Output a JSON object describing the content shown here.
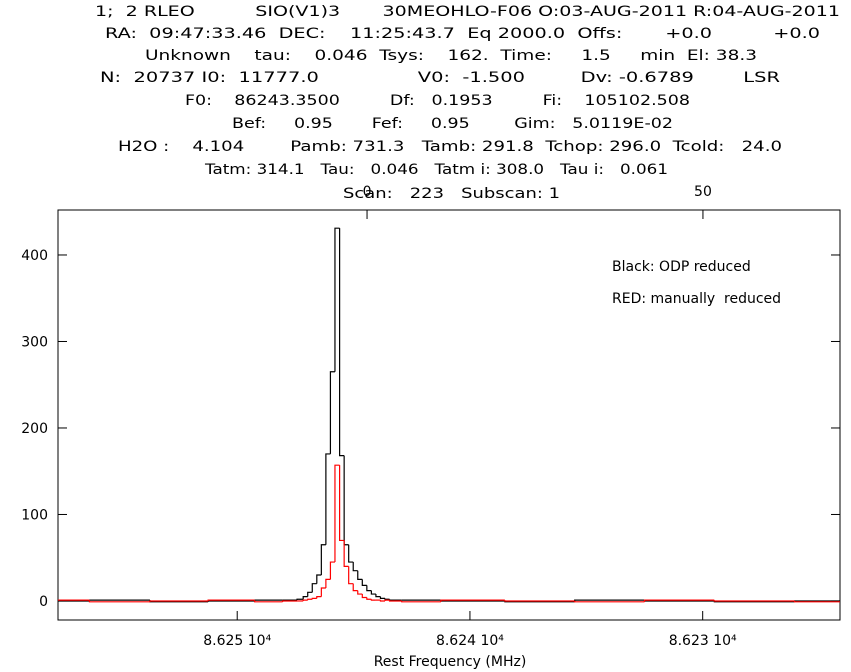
{
  "chart_data": {
    "type": "step",
    "header_lines": [
      "1;  2 RLEO          SIO(V1)3       30MEOHLO-F06 O:03-AUG-2011 R:04-AUG-2011",
      "RA:  09:47:33.46  DEC:    11:25:43.7  Eq 2000.0  Offs:       +0.0          +0.0",
      "Unknown    tau:    0.046  Tsys:    162.  Time:     1.5     min  El: 38.3",
      "N:  20737 I0:  11777.0                V0:  -1.500         Dv: -0.6789        LSR",
      "F0:    86243.3500         Df:   0.1953         Fi:    105102.508",
      "Bef:     0.95       Fef:     0.95        Gim:   5.0119E-02",
      "H2O :    4.104        Pamb: 731.3   Tamb: 291.8  Tchop: 296.0  Tcold:   24.0",
      "Tatm: 314.1   Tau:   0.046   Tatm i: 308.0   Tau i:   0.061",
      "Scan:   223   Subscan: 1"
    ],
    "x_label": "Rest Frequency (MHz)",
    "x": [
      86257.7,
      86255.0,
      86252.5,
      86250.0,
      86248.5,
      86247.6,
      86247.26,
      86247.07,
      86246.87,
      86246.68,
      86246.48,
      86246.29,
      86246.09,
      86245.9,
      86245.7,
      86245.5,
      86245.31,
      86245.11,
      86244.92,
      86244.72,
      86244.53,
      86244.33,
      86244.14,
      86243.94,
      86243.75,
      86243.55,
      86243.36,
      86242.5,
      86240.0,
      86237.0,
      86234.0,
      86231.0,
      86228.0,
      86224.1
    ],
    "series": [
      {
        "name": "Black: ODP reduced",
        "color": "#000000",
        "values": [
          0,
          1,
          -1,
          0,
          1,
          1,
          2,
          5,
          10,
          20,
          30,
          65,
          170,
          265,
          431,
          168,
          65,
          45,
          35,
          25,
          18,
          12,
          8,
          5,
          3,
          2,
          1,
          1,
          0,
          -1,
          1,
          0,
          -1,
          0
        ]
      },
      {
        "name": "RED: manually  reduced",
        "color": "#ff0000",
        "values": [
          1,
          -1,
          0,
          1,
          -1,
          0,
          0,
          1,
          2,
          3,
          5,
          15,
          25,
          45,
          157,
          70,
          40,
          20,
          12,
          8,
          4,
          2,
          1,
          1,
          0,
          1,
          0,
          -1,
          1,
          0,
          -1,
          1,
          0,
          -1
        ]
      }
    ],
    "xlim": [
      86257.7,
      86224.1
    ],
    "xticks": [
      {
        "value": 86250,
        "label": "8.625 10⁴"
      },
      {
        "value": 86240,
        "label": "8.624 10⁴"
      },
      {
        "value": 86230,
        "label": "8.623 10⁴"
      }
    ],
    "x2lim": [
      -46.0,
      70.4
    ],
    "x2ticks": [
      0,
      50
    ],
    "ylim": [
      -22,
      452
    ],
    "yticks": [
      0,
      100,
      200,
      300,
      400
    ],
    "grid": false
  }
}
